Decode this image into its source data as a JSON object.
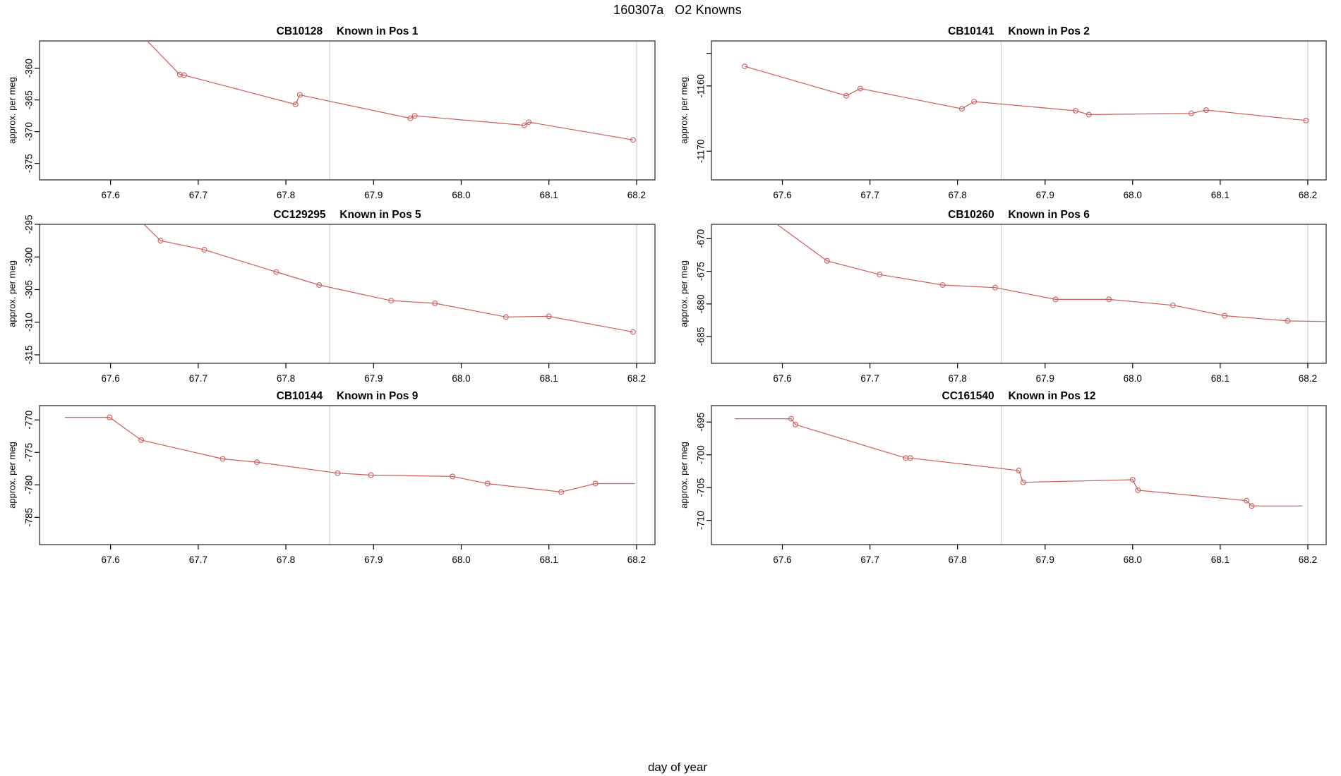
{
  "title": "160307a   O2 Knowns",
  "xlabel": "day of year",
  "colors": {
    "series": "#cd5c5c",
    "gridline": "#d9d9d9",
    "axis": "#000000",
    "box": "#333333",
    "background": "#ffffff"
  },
  "chart_data": [
    {
      "type": "line",
      "id": "CB10128",
      "pos_label": "Known in Pos 1",
      "title": "CB10128    Known in Pos 1",
      "ylabel": "approx. per meg",
      "xlim": [
        67.519,
        68.221
      ],
      "ylim": [
        -377.6,
        -355.7
      ],
      "xticks": [
        67.6,
        67.7,
        67.8,
        67.9,
        68.0,
        68.1,
        68.2
      ],
      "xtick_labels": [
        "67.6",
        "67.7",
        "67.8",
        "67.9",
        "68.0",
        "68.1",
        "68.2"
      ],
      "yticks": [
        -360,
        -365,
        -370,
        -375
      ],
      "ytick_labels": [
        "-360",
        "-365",
        "-370",
        "-375"
      ],
      "vlines": [
        67.85,
        68.2
      ],
      "lead": [
        67.56,
        -344.0
      ],
      "x": [
        67.679,
        67.684,
        67.811,
        67.816,
        67.942,
        67.947,
        68.072,
        68.077,
        68.196
      ],
      "y": [
        -361.0,
        -361.1,
        -365.7,
        -364.2,
        -367.9,
        -367.5,
        -369.0,
        -368.5,
        -371.3
      ],
      "tail": null
    },
    {
      "type": "line",
      "id": "CB10141",
      "pos_label": "Known in Pos 2",
      "title": "CB10141    Known in Pos 2",
      "ylabel": "approx. per meg",
      "xlim": [
        67.519,
        68.221
      ],
      "ylim": [
        -1174.4,
        -1153.1
      ],
      "xticks": [
        67.6,
        67.7,
        67.8,
        67.9,
        68.0,
        68.1,
        68.2
      ],
      "xtick_labels": [
        "67.6",
        "67.7",
        "67.8",
        "67.9",
        "68.0",
        "68.1",
        "68.2"
      ],
      "yticks": [
        -1155,
        -1160,
        -1170
      ],
      "ytick_labels": [
        "",
        "-1160",
        "-1170"
      ],
      "vlines": [
        67.85,
        68.2
      ],
      "lead": null,
      "x": [
        67.557,
        67.673,
        67.689,
        67.805,
        67.819,
        67.935,
        67.95,
        68.067,
        68.084,
        68.198
      ],
      "y": [
        -1157.0,
        -1161.5,
        -1160.4,
        -1163.5,
        -1162.4,
        -1163.8,
        -1164.4,
        -1164.2,
        -1163.7,
        -1165.3
      ],
      "tail": null
    },
    {
      "type": "line",
      "id": "CC129295",
      "pos_label": "Known in Pos 5",
      "title": "CC129295    Known in Pos 5",
      "ylabel": "approx. per meg",
      "xlim": [
        67.519,
        68.221
      ],
      "ylim": [
        -316.3,
        -295.0
      ],
      "xticks": [
        67.6,
        67.7,
        67.8,
        67.9,
        68.0,
        68.1,
        68.2
      ],
      "xtick_labels": [
        "67.6",
        "67.7",
        "67.8",
        "67.9",
        "68.0",
        "68.1",
        "68.2"
      ],
      "yticks": [
        -295,
        -300,
        -305,
        -310,
        -315
      ],
      "ytick_labels": [
        "-295",
        "-300",
        "-305",
        "-310",
        "-315"
      ],
      "vlines": [
        67.85,
        68.2
      ],
      "lead": [
        67.56,
        -284.7
      ],
      "x": [
        67.657,
        67.707,
        67.789,
        67.838,
        67.92,
        67.97,
        68.051,
        68.1,
        68.196
      ],
      "y": [
        -297.5,
        -298.9,
        -302.3,
        -304.3,
        -306.7,
        -307.1,
        -309.2,
        -309.1,
        -311.5
      ],
      "tail": null
    },
    {
      "type": "line",
      "id": "CB10260",
      "pos_label": "Known in Pos 6",
      "title": "CB10260    Known in Pos 6",
      "ylabel": "approx. per meg",
      "xlim": [
        67.519,
        68.221
      ],
      "ylim": [
        -689.1,
        -667.8
      ],
      "xticks": [
        67.6,
        67.7,
        67.8,
        67.9,
        68.0,
        68.1,
        68.2
      ],
      "xtick_labels": [
        "67.6",
        "67.7",
        "67.8",
        "67.9",
        "68.0",
        "68.1",
        "68.2"
      ],
      "yticks": [
        -670,
        -675,
        -680,
        -685
      ],
      "ytick_labels": [
        "-670",
        "-675",
        "-680",
        "-685"
      ],
      "vlines": [
        67.85,
        68.2
      ],
      "lead": [
        67.55,
        -663.5
      ],
      "x": [
        67.651,
        67.711,
        67.783,
        67.843,
        67.912,
        67.973,
        68.046,
        68.105,
        68.177
      ],
      "y": [
        -673.4,
        -675.5,
        -677.1,
        -677.5,
        -679.3,
        -679.3,
        -680.2,
        -681.8,
        -682.6
      ],
      "tail": [
        68.22,
        -682.7
      ]
    },
    {
      "type": "line",
      "id": "CB10144",
      "pos_label": "Known in Pos 9",
      "title": "CB10144    Known in Pos 9",
      "ylabel": "approx. per meg",
      "xlim": [
        67.519,
        68.221
      ],
      "ylim": [
        -789.2,
        -767.8
      ],
      "xticks": [
        67.6,
        67.7,
        67.8,
        67.9,
        68.0,
        68.1,
        68.2
      ],
      "xtick_labels": [
        "67.6",
        "67.7",
        "67.8",
        "67.9",
        "68.0",
        "68.1",
        "68.2"
      ],
      "yticks": [
        -770,
        -775,
        -780,
        -785
      ],
      "ytick_labels": [
        "-770",
        "-775",
        "-780",
        "-785"
      ],
      "vlines": [
        67.85,
        68.2
      ],
      "lead": [
        67.548,
        -769.6
      ],
      "x": [
        67.599,
        67.635,
        67.728,
        67.767,
        67.859,
        67.897,
        67.99,
        68.03,
        68.114,
        68.153
      ],
      "y": [
        -769.6,
        -773.1,
        -776.0,
        -776.5,
        -778.2,
        -778.5,
        -778.7,
        -779.8,
        -781.1,
        -779.8
      ],
      "tail": [
        68.198,
        -779.8
      ]
    },
    {
      "type": "line",
      "id": "CC161540",
      "pos_label": "Known in Pos 12",
      "title": "CC161540    Known in Pos 12",
      "ylabel": "approx. per meg",
      "xlim": [
        67.519,
        68.221
      ],
      "ylim": [
        -713.7,
        -692.5
      ],
      "xticks": [
        67.6,
        67.7,
        67.8,
        67.9,
        68.0,
        68.1,
        68.2
      ],
      "xtick_labels": [
        "67.6",
        "67.7",
        "67.8",
        "67.9",
        "68.0",
        "68.1",
        "68.2"
      ],
      "yticks": [
        -695,
        -700,
        -705,
        -710
      ],
      "ytick_labels": [
        "-695",
        "-700",
        "-705",
        "-710"
      ],
      "vlines": [
        67.85,
        68.2
      ],
      "lead": [
        67.546,
        -694.5
      ],
      "x": [
        67.61,
        67.615,
        67.741,
        67.746,
        67.87,
        67.875,
        68.0,
        68.006,
        68.13,
        68.136
      ],
      "y": [
        -694.5,
        -695.4,
        -700.5,
        -700.5,
        -702.4,
        -704.2,
        -703.8,
        -705.4,
        -707.0,
        -707.8
      ],
      "tail": [
        68.194,
        -707.8
      ]
    }
  ]
}
